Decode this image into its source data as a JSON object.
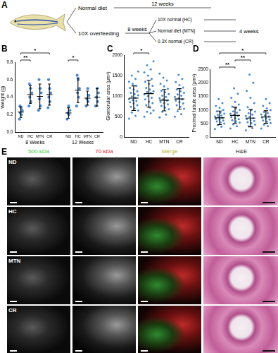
{
  "diagram": {
    "panel": "A",
    "branches": [
      {
        "label": "Normal diet",
        "duration": "12 weeks"
      },
      {
        "label": "10X overfeeding",
        "duration": "8 weeks",
        "branches": [
          "10X normal (HC)",
          "Normal diet (MTN)",
          "0.3X normal (CR)"
        ],
        "then": "4 weeks"
      }
    ]
  },
  "chart_data": [
    {
      "panel": "B",
      "type": "scatter",
      "y_label": "Weight (g)",
      "categories": [
        "ND",
        "HC",
        "MTN",
        "CR"
      ],
      "color": "#4a8bd0",
      "grid": false,
      "ylim": [
        0,
        0.8
      ],
      "yticks": [
        {
          "value": 0,
          "label": "0.0"
        },
        0.2,
        0.4,
        0.6,
        0.8
      ],
      "series": [
        {
          "name": "8 Weeks",
          "values": [
            [
              0.15,
              0.2,
              0.22,
              0.25,
              0.28,
              0.3
            ],
            [
              0.3,
              0.35,
              0.4,
              0.45,
              0.5,
              0.55
            ],
            [
              0.25,
              0.3,
              0.38,
              0.45,
              0.5,
              0.6
            ],
            [
              0.28,
              0.35,
              0.4,
              0.45,
              0.5,
              0.6
            ]
          ],
          "mean": [
            0.23,
            0.43,
            0.41,
            0.43
          ],
          "sd": [
            0.06,
            0.1,
            0.14,
            0.12
          ]
        },
        {
          "name": "12 Weeks",
          "values": [
            [
              0.15,
              0.2,
              0.22,
              0.25,
              0.3
            ],
            [
              0.3,
              0.4,
              0.45,
              0.5,
              0.6,
              0.65
            ],
            [
              0.3,
              0.35,
              0.38,
              0.42,
              0.5
            ],
            [
              0.3,
              0.35,
              0.4,
              0.45,
              0.5
            ]
          ],
          "mean": [
            0.22,
            0.48,
            0.39,
            0.4
          ],
          "sd": [
            0.06,
            0.14,
            0.08,
            0.1
          ]
        }
      ],
      "significance": [
        {
          "group": "8 Weeks",
          "from": "ND",
          "to": "HC",
          "label": "**"
        },
        {
          "group": "8 Weeks",
          "from": "ND",
          "to": "CR",
          "label": "*"
        },
        {
          "group": "12 Weeks",
          "from": "ND",
          "to": "HC",
          "label": "*"
        }
      ]
    },
    {
      "panel": "C",
      "type": "scatter",
      "y_label": "Glomerular area (μm²)",
      "categories": [
        "ND",
        "HC",
        "MTN",
        "CR"
      ],
      "color": "#4a8bd0",
      "grid": false,
      "ylim": [
        0,
        2000
      ],
      "yticks": [
        0,
        500,
        1000,
        1500,
        2000
      ],
      "values": [
        [
          450,
          520,
          600,
          650,
          700,
          740,
          780,
          820,
          850,
          880,
          900,
          930,
          960,
          990,
          1020,
          1050,
          1080,
          1120,
          1160,
          1200,
          1250,
          1300,
          1350,
          1420,
          1500,
          1600
        ],
        [
          500,
          580,
          620,
          650,
          720,
          780,
          830,
          870,
          920,
          960,
          1000,
          1040,
          1080,
          1100,
          1120,
          1160,
          1200,
          1250,
          1300,
          1350,
          1420,
          1500,
          1580,
          1650,
          1750,
          1850
        ],
        [
          480,
          550,
          620,
          680,
          720,
          760,
          800,
          830,
          860,
          890,
          920,
          950,
          980,
          1010,
          1050,
          1090,
          1130,
          1180,
          1240,
          1300,
          1380,
          1450,
          1550
        ],
        [
          500,
          560,
          630,
          690,
          740,
          780,
          820,
          860,
          890,
          920,
          950,
          980,
          1010,
          1040,
          1080,
          1120,
          1160,
          1210,
          1270,
          1340,
          1420,
          1520
        ]
      ],
      "mean": [
        950,
        1060,
        900,
        930
      ],
      "sd": [
        300,
        330,
        260,
        250
      ],
      "significance": [
        {
          "from": "ND",
          "to": "HC",
          "label": "*"
        }
      ]
    },
    {
      "panel": "D",
      "type": "scatter",
      "y_label": "Proximal tubule area (μm²)",
      "categories": [
        "ND",
        "HC",
        "MTN",
        "CR"
      ],
      "color": "#4a8bd0",
      "grid": false,
      "ylim": [
        0,
        2500
      ],
      "yticks": [
        0,
        500,
        1000,
        1500,
        2000,
        2500
      ],
      "values": [
        [
          300,
          380,
          440,
          500,
          540,
          580,
          610,
          640,
          670,
          700,
          730,
          760,
          790,
          820,
          860,
          900,
          950,
          1000,
          1080,
          1150,
          1250,
          1400
        ],
        [
          320,
          400,
          470,
          530,
          580,
          620,
          660,
          700,
          740,
          780,
          820,
          860,
          900,
          950,
          1000,
          1060,
          1120,
          1200,
          1300,
          1450,
          1600,
          1800
        ],
        [
          250,
          330,
          400,
          460,
          510,
          550,
          590,
          630,
          660,
          700,
          740,
          780,
          830,
          880,
          940,
          1000,
          1100,
          1250,
          1450,
          1700,
          2000,
          2300
        ],
        [
          320,
          400,
          460,
          520,
          570,
          610,
          650,
          690,
          720,
          760,
          800,
          840,
          880,
          930,
          990,
          1060,
          1150,
          1250,
          1400
        ]
      ],
      "mean": [
        710,
        800,
        700,
        740
      ],
      "sd": [
        250,
        300,
        320,
        230
      ],
      "significance": [
        {
          "from": "ND",
          "to": "HC",
          "label": "**"
        },
        {
          "from": "HC",
          "to": "MTN",
          "label": "**"
        },
        {
          "from": "ND",
          "to": "CR",
          "label": "*"
        }
      ]
    }
  ],
  "images": {
    "panel": "E",
    "columns": [
      {
        "label": "500 kDa",
        "color": "#2fcf2f"
      },
      {
        "label": "70 kDa",
        "color": "#e02020"
      },
      {
        "label": "Merge",
        "color": "#b8b030"
      },
      {
        "label": "H&E",
        "color": "#222222"
      }
    ],
    "rows": [
      "ND",
      "HC",
      "MTN",
      "CR"
    ]
  }
}
